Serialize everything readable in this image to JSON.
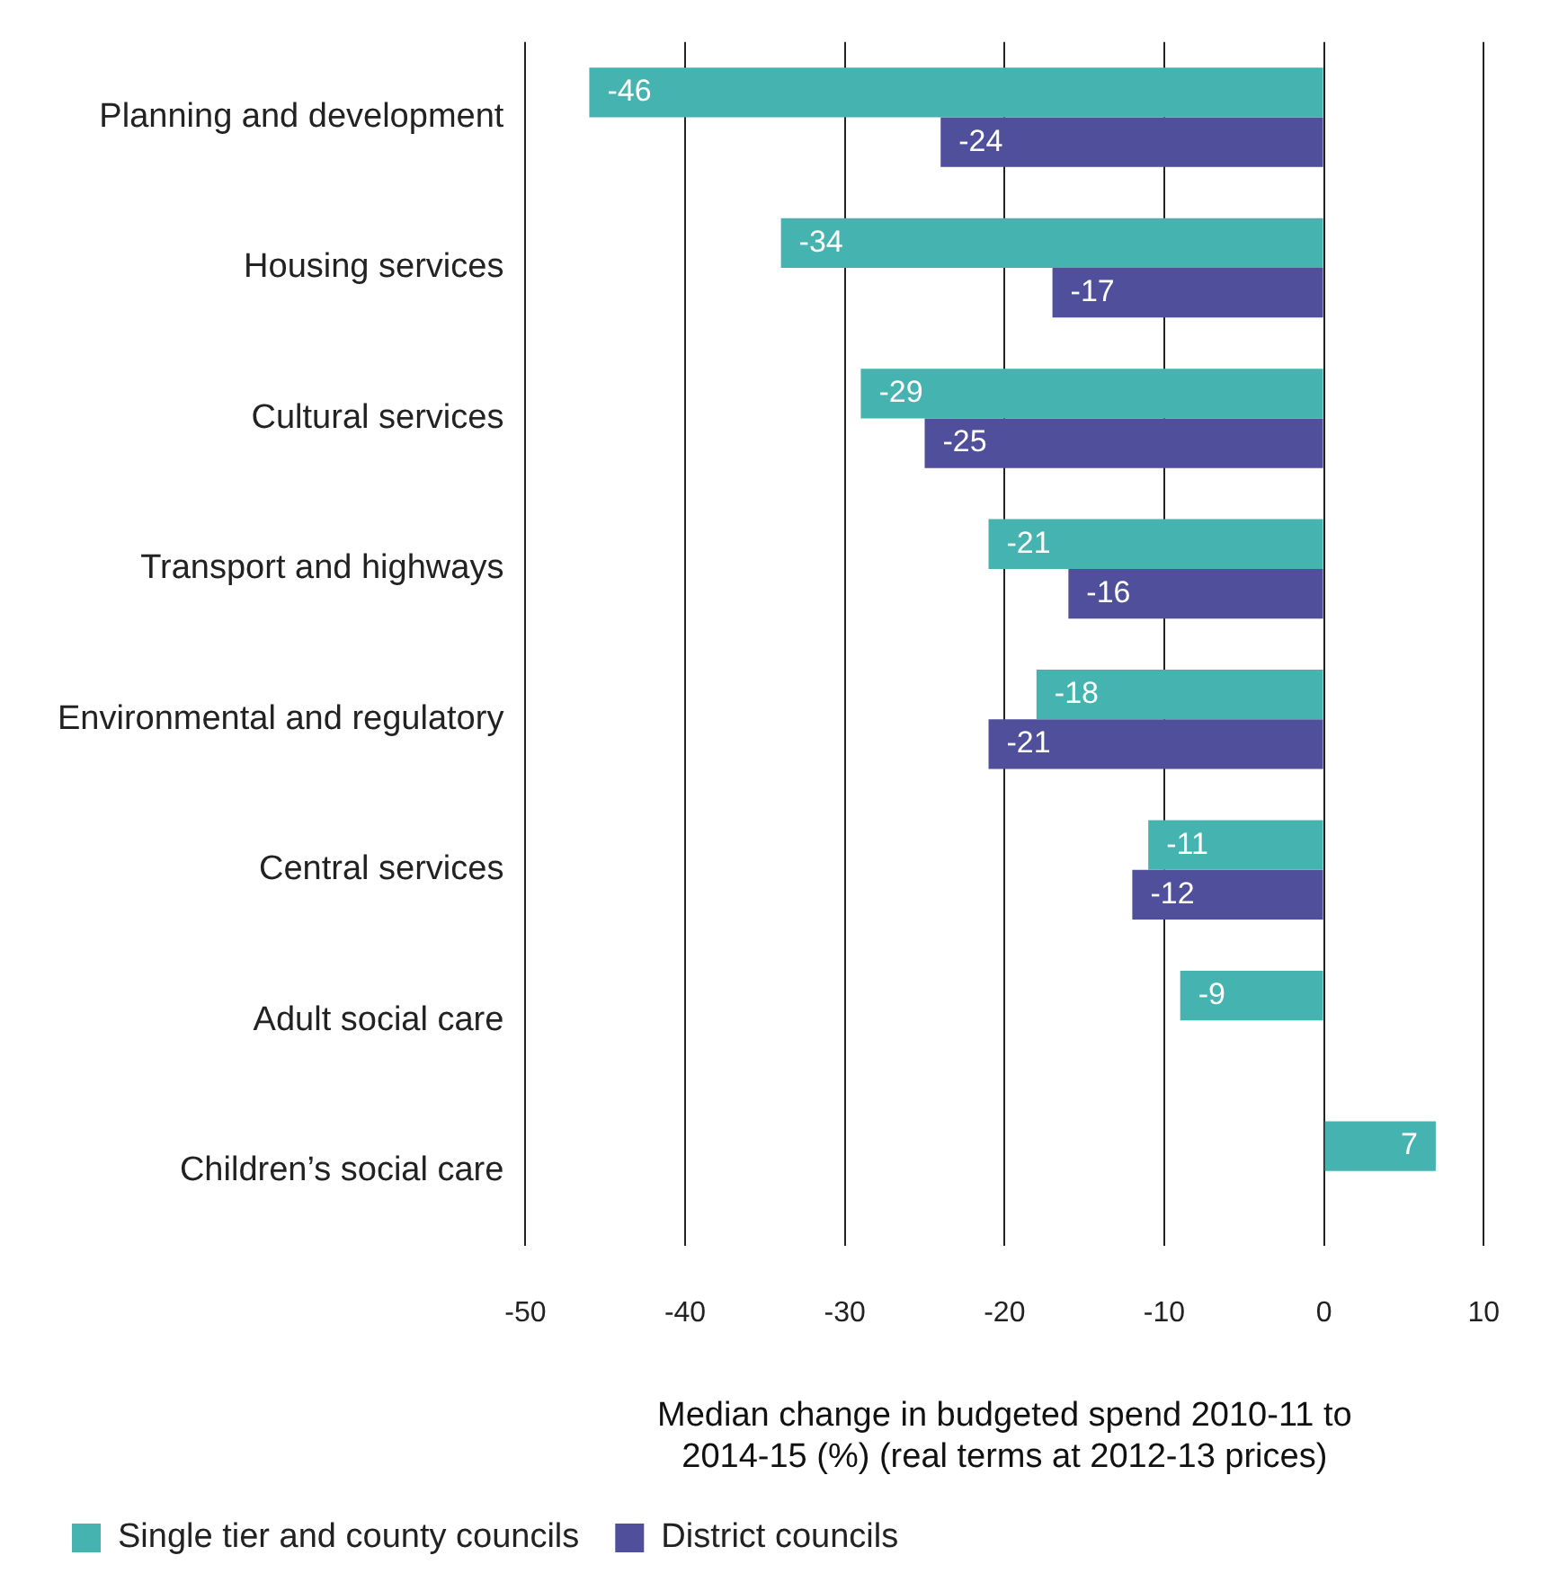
{
  "chart_data": {
    "type": "bar",
    "orientation": "horizontal",
    "categories": [
      "Planning and development",
      "Housing services",
      "Cultural services",
      "Transport and highways",
      "Environmental and regulatory",
      "Central services",
      "Adult social care",
      "Children’s social care"
    ],
    "series": [
      {
        "name": "Single tier and county councils",
        "color": "#45b3b0",
        "values": [
          -46,
          -34,
          -29,
          -21,
          -18,
          -11,
          -9,
          7
        ]
      },
      {
        "name": "District councils",
        "color": "#4f4f9b",
        "values": [
          -24,
          -17,
          -25,
          -16,
          -21,
          -12,
          null,
          null
        ]
      }
    ],
    "xlabel": "Median change in budgeted spend 2010-11 to 2014-15 (%) (real terms at 2012-13 prices)",
    "xlim": [
      -50,
      10
    ],
    "xticks": [
      -50,
      -40,
      -30,
      -20,
      -10,
      0,
      10
    ],
    "grid": "x",
    "legend": "bottom left",
    "data_labels": true
  }
}
